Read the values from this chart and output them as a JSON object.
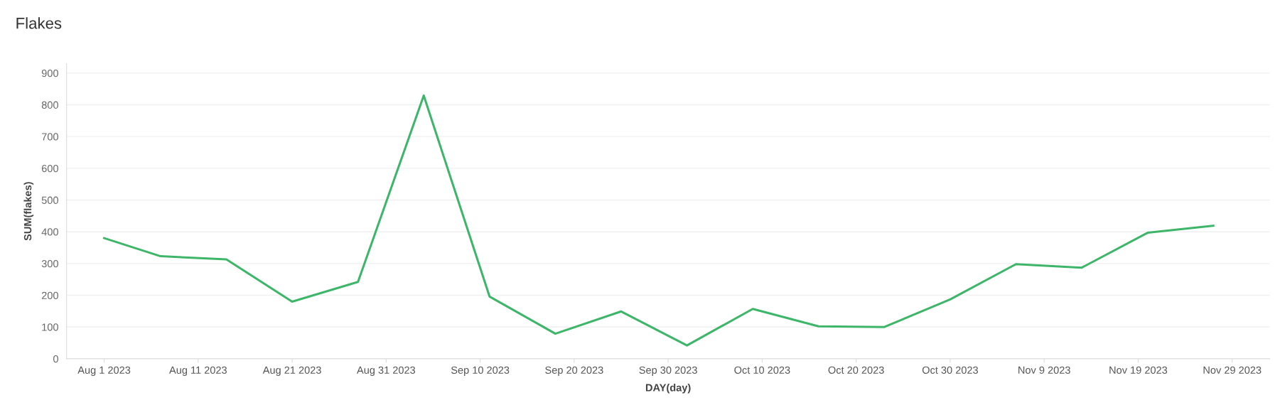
{
  "chart_data": {
    "type": "line",
    "title": "Flakes",
    "xlabel": "DAY(day)",
    "ylabel": "SUM(flakes)",
    "x": [
      "2023-08-01",
      "2023-08-07",
      "2023-08-14",
      "2023-08-21",
      "2023-08-28",
      "2023-09-04",
      "2023-09-11",
      "2023-09-18",
      "2023-09-25",
      "2023-10-02",
      "2023-10-09",
      "2023-10-16",
      "2023-10-23",
      "2023-10-30",
      "2023-11-06",
      "2023-11-13",
      "2023-11-20",
      "2023-11-27"
    ],
    "series": [
      {
        "color": "#3db66a",
        "values": [
          380,
          323,
          313,
          180,
          242,
          829,
          196,
          79,
          149,
          42,
          157,
          102,
          100,
          187,
          298,
          287,
          397,
          419
        ]
      }
    ],
    "xlim": [
      "2023-07-28",
      "2023-12-03"
    ],
    "xticks": [
      {
        "value": "2023-08-01",
        "label": "Aug 1 2023"
      },
      {
        "value": "2023-08-11",
        "label": "Aug 11 2023"
      },
      {
        "value": "2023-08-21",
        "label": "Aug 21 2023"
      },
      {
        "value": "2023-08-31",
        "label": "Aug 31 2023"
      },
      {
        "value": "2023-09-10",
        "label": "Sep 10 2023"
      },
      {
        "value": "2023-09-20",
        "label": "Sep 20 2023"
      },
      {
        "value": "2023-09-30",
        "label": "Sep 30 2023"
      },
      {
        "value": "2023-10-10",
        "label": "Oct 10 2023"
      },
      {
        "value": "2023-10-20",
        "label": "Oct 20 2023"
      },
      {
        "value": "2023-10-30",
        "label": "Oct 30 2023"
      },
      {
        "value": "2023-11-09",
        "label": "Nov 9 2023"
      },
      {
        "value": "2023-11-19",
        "label": "Nov 19 2023"
      },
      {
        "value": "2023-11-29",
        "label": "Nov 29 2023"
      }
    ],
    "ylim": [
      0,
      930
    ],
    "yticks": [
      0,
      100,
      200,
      300,
      400,
      500,
      600,
      700,
      800,
      900
    ],
    "grid": "y",
    "marker": "none",
    "line_style": "solid"
  }
}
